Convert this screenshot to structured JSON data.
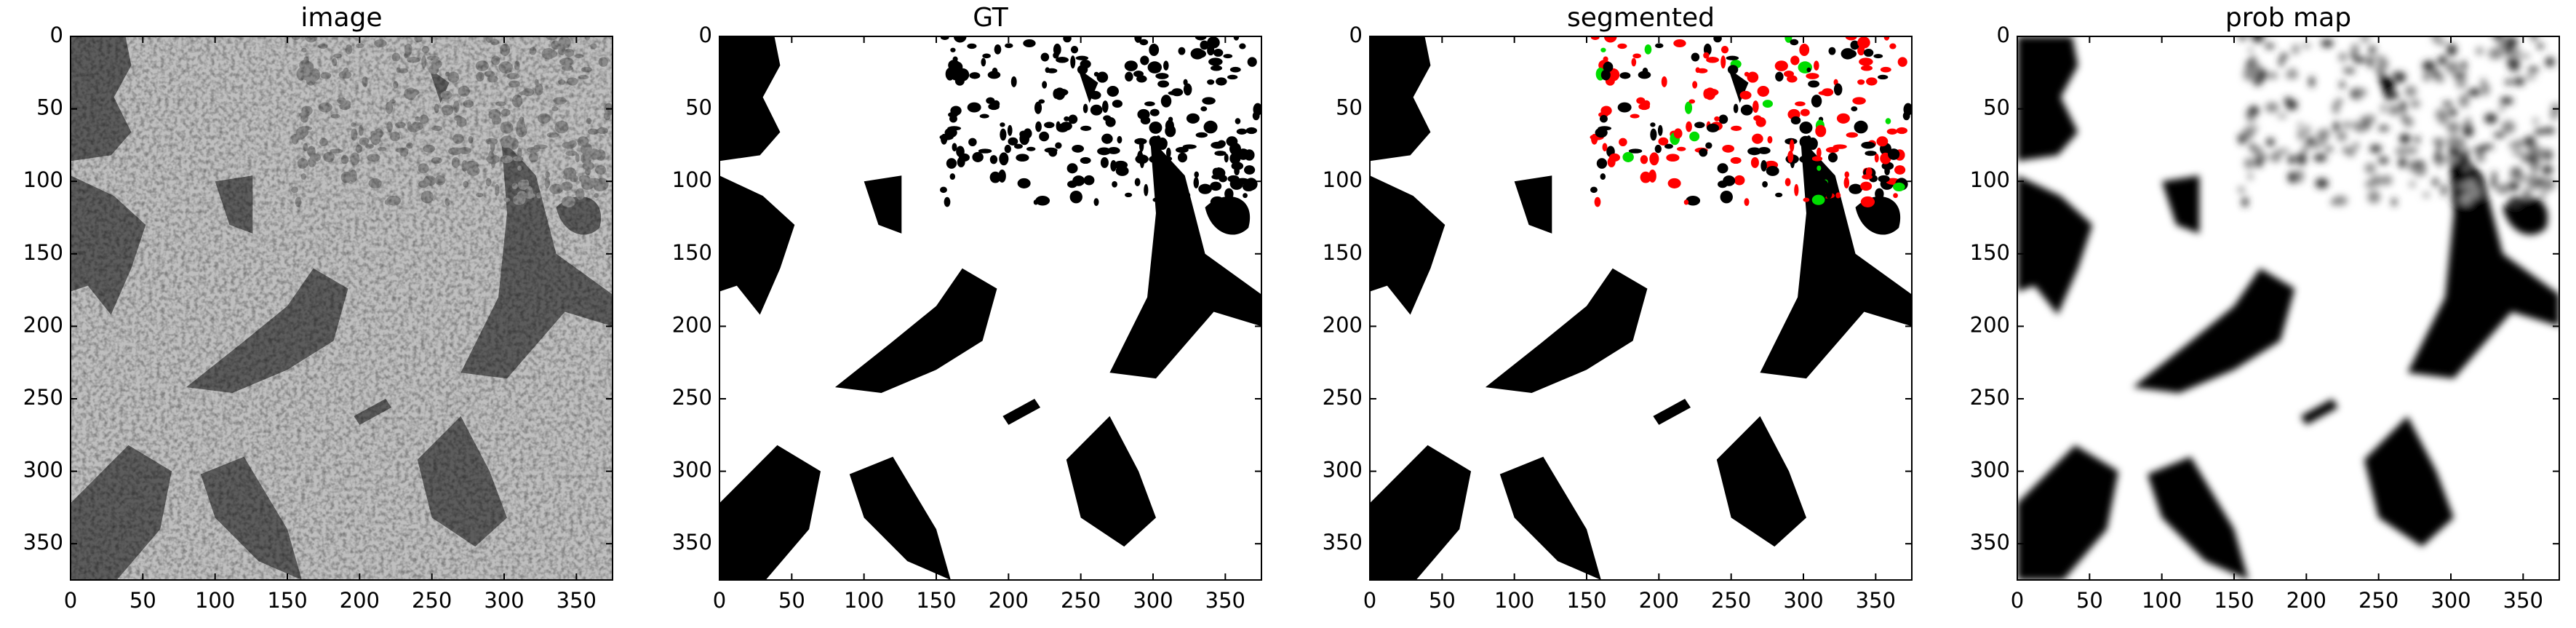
{
  "chart_data": [
    {
      "type": "image",
      "title": "image",
      "xlim": [
        0,
        375
      ],
      "ylim": [
        375,
        0
      ],
      "xticks": [
        0,
        50,
        100,
        150,
        200,
        250,
        300,
        350
      ],
      "yticks": [
        0,
        50,
        100,
        150,
        200,
        250,
        300,
        350
      ]
    },
    {
      "type": "image",
      "title": "GT",
      "xlim": [
        0,
        375
      ],
      "ylim": [
        375,
        0
      ],
      "xticks": [
        0,
        50,
        100,
        150,
        200,
        250,
        300,
        350
      ],
      "yticks": [
        0,
        50,
        100,
        150,
        200,
        250,
        300,
        350
      ]
    },
    {
      "type": "image",
      "title": "segmented",
      "xlim": [
        0,
        375
      ],
      "ylim": [
        375,
        0
      ],
      "xticks": [
        0,
        50,
        100,
        150,
        200,
        250,
        300,
        350
      ],
      "yticks": [
        0,
        50,
        100,
        150,
        200,
        250,
        300,
        350
      ]
    },
    {
      "type": "image",
      "title": "prob map",
      "xlim": [
        0,
        375
      ],
      "ylim": [
        375,
        0
      ],
      "xticks": [
        0,
        50,
        100,
        150,
        200,
        250,
        300,
        350
      ],
      "yticks": [
        0,
        50,
        100,
        150,
        200,
        250,
        300,
        350
      ]
    }
  ]
}
